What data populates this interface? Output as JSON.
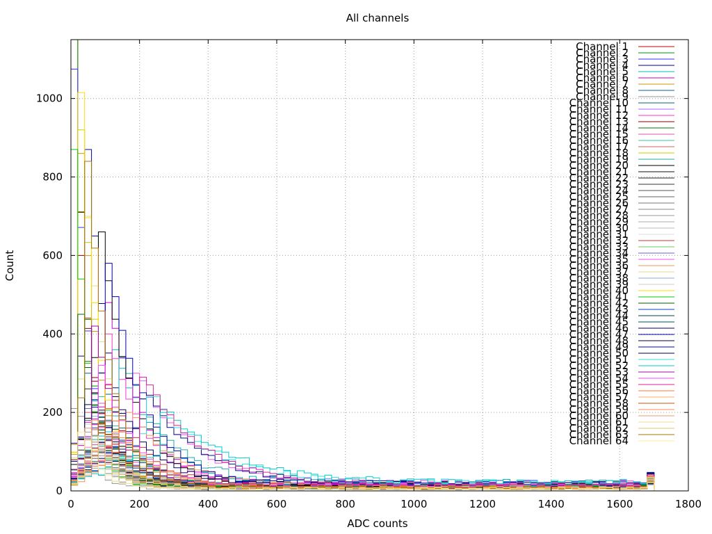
{
  "chart_data": {
    "type": "line",
    "title": "All channels",
    "xlabel": "ADC counts",
    "ylabel": "Count",
    "xlim": [
      0,
      1800
    ],
    "ylim": [
      0,
      1150
    ],
    "xticks": [
      0,
      200,
      400,
      600,
      800,
      1000,
      1200,
      1400,
      1600,
      1800
    ],
    "yticks": [
      0,
      200,
      400,
      600,
      800,
      1000
    ],
    "grid": true,
    "legend_position": "top-right",
    "bin_width": 20,
    "x_max": 1700,
    "series": [
      {
        "name": "Channel 1",
        "color": "#cc0000",
        "peak": [
          0,
          1150
        ],
        "tail": 15
      },
      {
        "name": "Channel 2",
        "color": "#009900",
        "peak": [
          0,
          1150
        ],
        "tail": 12
      },
      {
        "name": "Channel 3",
        "color": "#3333ff",
        "peak": [
          0,
          1075
        ],
        "tail": 14
      },
      {
        "name": "Channel 4",
        "color": "#000099",
        "peak": [
          40,
          870
        ],
        "tail": 18
      },
      {
        "name": "Channel 5",
        "color": "#00bbbb",
        "peak": [
          120,
          360
        ],
        "tail": 20
      },
      {
        "name": "Channel 6",
        "color": "#cc00cc",
        "peak": [
          100,
          480
        ],
        "tail": 16
      },
      {
        "name": "Channel 7",
        "color": "#cc9900",
        "peak": [
          20,
          860
        ],
        "tail": 10
      },
      {
        "name": "Channel 8",
        "color": "#006699",
        "peak": [
          40,
          300
        ],
        "tail": 12
      },
      {
        "name": "Channel 9",
        "color": "#999999",
        "peak": [
          0,
          210
        ],
        "tail": 8
      },
      {
        "name": "Channel 10",
        "color": "#006666",
        "peak": [
          80,
          300
        ],
        "tail": 12
      },
      {
        "name": "Channel 11",
        "color": "#aa66ff",
        "peak": [
          60,
          250
        ],
        "tail": 10
      },
      {
        "name": "Channel 12",
        "color": "#ff33cc",
        "peak": [
          100,
          400
        ],
        "tail": 14
      },
      {
        "name": "Channel 13",
        "color": "#880000",
        "peak": [
          20,
          600
        ],
        "tail": 8
      },
      {
        "name": "Channel 14",
        "color": "#007700",
        "peak": [
          40,
          330
        ],
        "tail": 10
      },
      {
        "name": "Channel 15",
        "color": "#dd55aa",
        "peak": [
          60,
          280
        ],
        "tail": 12
      },
      {
        "name": "Channel 16",
        "color": "#33cc99",
        "peak": [
          80,
          240
        ],
        "tail": 10
      },
      {
        "name": "Channel 17",
        "color": "#cc6666",
        "peak": [
          40,
          200
        ],
        "tail": 9
      },
      {
        "name": "Channel 18",
        "color": "#cccc00",
        "peak": [
          20,
          920
        ],
        "tail": 8
      },
      {
        "name": "Channel 19",
        "color": "#22aaaa",
        "peak": [
          140,
          340
        ],
        "tail": 18
      },
      {
        "name": "Channel 20",
        "color": "#000000",
        "peak": [
          80,
          660
        ],
        "tail": 16
      },
      {
        "name": "Channel 21",
        "color": "#111111",
        "peak": [
          60,
          220
        ],
        "tail": 10
      },
      {
        "name": "Channel 22",
        "color": "#222222",
        "peak": [
          40,
          260
        ],
        "tail": 9
      },
      {
        "name": "Channel 23",
        "color": "#333333",
        "peak": [
          60,
          200
        ],
        "tail": 8
      },
      {
        "name": "Channel 24",
        "color": "#555555",
        "peak": [
          40,
          180
        ],
        "tail": 7
      },
      {
        "name": "Channel 25",
        "color": "#666666",
        "peak": [
          80,
          170
        ],
        "tail": 7
      },
      {
        "name": "Channel 26",
        "color": "#777777",
        "peak": [
          60,
          160
        ],
        "tail": 6
      },
      {
        "name": "Channel 27",
        "color": "#888888",
        "peak": [
          20,
          190
        ],
        "tail": 6
      },
      {
        "name": "Channel 28",
        "color": "#999999",
        "peak": [
          40,
          150
        ],
        "tail": 6
      },
      {
        "name": "Channel 29",
        "color": "#aaaaaa",
        "peak": [
          60,
          140
        ],
        "tail": 6
      },
      {
        "name": "Channel 30",
        "color": "#bbbbbb",
        "peak": [
          40,
          130
        ],
        "tail": 5
      },
      {
        "name": "Channel 31",
        "color": "#dddddd",
        "peak": [
          20,
          120
        ],
        "tail": 5
      },
      {
        "name": "Channel 32",
        "color": "#cc3333",
        "peak": [
          100,
          270
        ],
        "tail": 12
      },
      {
        "name": "Channel 33",
        "color": "#66cc66",
        "peak": [
          60,
          220
        ],
        "tail": 9
      },
      {
        "name": "Channel 34",
        "color": "#6666cc",
        "peak": [
          40,
          210
        ],
        "tail": 9
      },
      {
        "name": "Channel 35",
        "color": "#ee55ee",
        "peak": [
          180,
          300
        ],
        "tail": 18
      },
      {
        "name": "Channel 36",
        "color": "#ee9955",
        "peak": [
          160,
          200
        ],
        "tail": 10
      },
      {
        "name": "Channel 37",
        "color": "#dddd88",
        "peak": [
          40,
          700
        ],
        "tail": 8
      },
      {
        "name": "Channel 38",
        "color": "#88aadd",
        "peak": [
          60,
          190
        ],
        "tail": 8
      },
      {
        "name": "Channel 39",
        "color": "#cccccc",
        "peak": [
          40,
          170
        ],
        "tail": 7
      },
      {
        "name": "Channel 40",
        "color": "#ffdd00",
        "peak": [
          20,
          1015
        ],
        "tail": 9
      },
      {
        "name": "Channel 41",
        "color": "#00cc00",
        "peak": [
          0,
          870
        ],
        "tail": 10
      },
      {
        "name": "Channel 42",
        "color": "#006600",
        "peak": [
          20,
          450
        ],
        "tail": 9
      },
      {
        "name": "Channel 43",
        "color": "#0044cc",
        "peak": [
          60,
          230
        ],
        "tail": 10
      },
      {
        "name": "Channel 44",
        "color": "#004444",
        "peak": [
          80,
          200
        ],
        "tail": 9
      },
      {
        "name": "Channel 45",
        "color": "#005555",
        "peak": [
          100,
          180
        ],
        "tail": 9
      },
      {
        "name": "Channel 46",
        "color": "#000066",
        "peak": [
          120,
          240
        ],
        "tail": 12
      },
      {
        "name": "Channel 47",
        "color": "#0000aa",
        "peak": [
          100,
          580
        ],
        "tail": 18
      },
      {
        "name": "Channel 48",
        "color": "#000033",
        "peak": [
          60,
          250
        ],
        "tail": 10
      },
      {
        "name": "Channel 49",
        "color": "#001188",
        "peak": [
          200,
          250
        ],
        "tail": 16
      },
      {
        "name": "Channel 50",
        "color": "#000044",
        "peak": [
          40,
          220
        ],
        "tail": 10
      },
      {
        "name": "Channel 51",
        "color": "#33dddd",
        "peak": [
          220,
          240
        ],
        "tail": 20
      },
      {
        "name": "Channel 52",
        "color": "#00cccc",
        "peak": [
          260,
          200
        ],
        "tail": 18
      },
      {
        "name": "Channel 53",
        "color": "#aa00aa",
        "peak": [
          60,
          420
        ],
        "tail": 12
      },
      {
        "name": "Channel 54",
        "color": "#ff44ff",
        "peak": [
          80,
          320
        ],
        "tail": 12
      },
      {
        "name": "Channel 55",
        "color": "#dd2299",
        "peak": [
          200,
          290
        ],
        "tail": 14
      },
      {
        "name": "Channel 56",
        "color": "#ff7733",
        "peak": [
          100,
          210
        ],
        "tail": 10
      },
      {
        "name": "Channel 57",
        "color": "#ffaa66",
        "peak": [
          60,
          180
        ],
        "tail": 8
      },
      {
        "name": "Channel 58",
        "color": "#cc5500",
        "peak": [
          80,
          170
        ],
        "tail": 8
      },
      {
        "name": "Channel 59",
        "color": "#ff8855",
        "peak": [
          120,
          150
        ],
        "tail": 8
      },
      {
        "name": "Channel 60",
        "color": "#ee9977",
        "peak": [
          40,
          160
        ],
        "tail": 7
      },
      {
        "name": "Channel 61",
        "color": "#eedd99",
        "peak": [
          60,
          140
        ],
        "tail": 6
      },
      {
        "name": "Channel 62",
        "color": "#ddcc66",
        "peak": [
          40,
          130
        ],
        "tail": 6
      },
      {
        "name": "Channel 63",
        "color": "#aa7700",
        "peak": [
          40,
          840
        ],
        "tail": 8
      },
      {
        "name": "Channel 64",
        "color": "#ffee99",
        "peak": [
          20,
          150
        ],
        "tail": 6
      }
    ]
  }
}
